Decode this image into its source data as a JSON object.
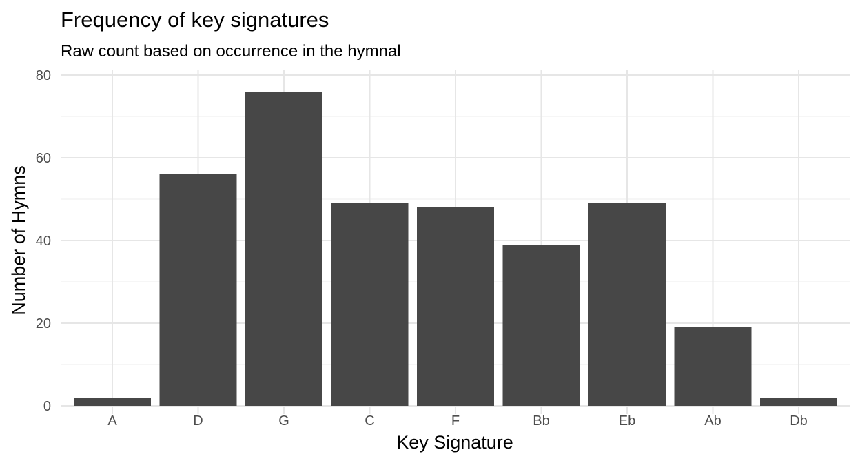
{
  "chart_data": {
    "type": "bar",
    "title": "Frequency of key signatures",
    "subtitle": "Raw count based on occurrence in the hymnal",
    "xlabel": "Key Signature",
    "ylabel": "Number of Hymns",
    "categories": [
      "A",
      "D",
      "G",
      "C",
      "F",
      "Bb",
      "Eb",
      "Ab",
      "Db"
    ],
    "values": [
      2,
      56,
      76,
      49,
      48,
      39,
      49,
      19,
      2
    ],
    "ylim": [
      0,
      80
    ],
    "yticks": [
      0,
      20,
      40,
      60,
      80
    ],
    "ytick_labels": [
      "0",
      "20",
      "40",
      "60",
      "80"
    ],
    "grid": true,
    "legend": "none",
    "colors": {
      "bar": "#474747",
      "grid_major": "#e6e6e6",
      "grid_minor": "#f0f0f0",
      "text": "#000000",
      "tick_text": "#4d4d4d"
    }
  }
}
